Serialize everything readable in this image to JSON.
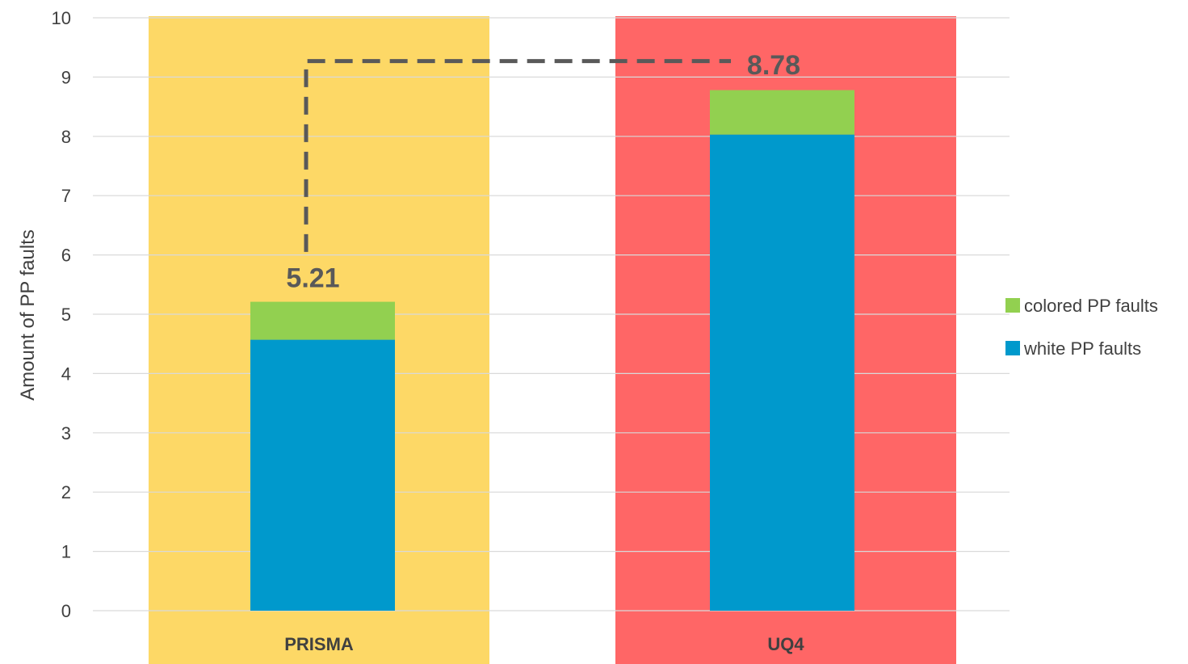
{
  "chart_data": {
    "type": "bar",
    "stacked": true,
    "categories": [
      "PRISMA",
      "UQ4"
    ],
    "series": [
      {
        "name": "white PP faults",
        "values": [
          4.57,
          8.03
        ],
        "color": "#0099CC"
      },
      {
        "name": "colored PP faults",
        "values": [
          0.64,
          0.75
        ],
        "color": "#92D050"
      }
    ],
    "totals": [
      "5.21",
      "8.78"
    ],
    "category_backgrounds": [
      "#FDD866",
      "#FF6666"
    ],
    "ylabel": "Amount of PP faults",
    "xlabel": "",
    "title": "",
    "ylim": [
      0,
      10
    ],
    "yticks": [
      0,
      1,
      2,
      3,
      4,
      5,
      6,
      7,
      8,
      9,
      10
    ],
    "grid": true,
    "legend": "right",
    "connector_line_color": "#595959"
  }
}
